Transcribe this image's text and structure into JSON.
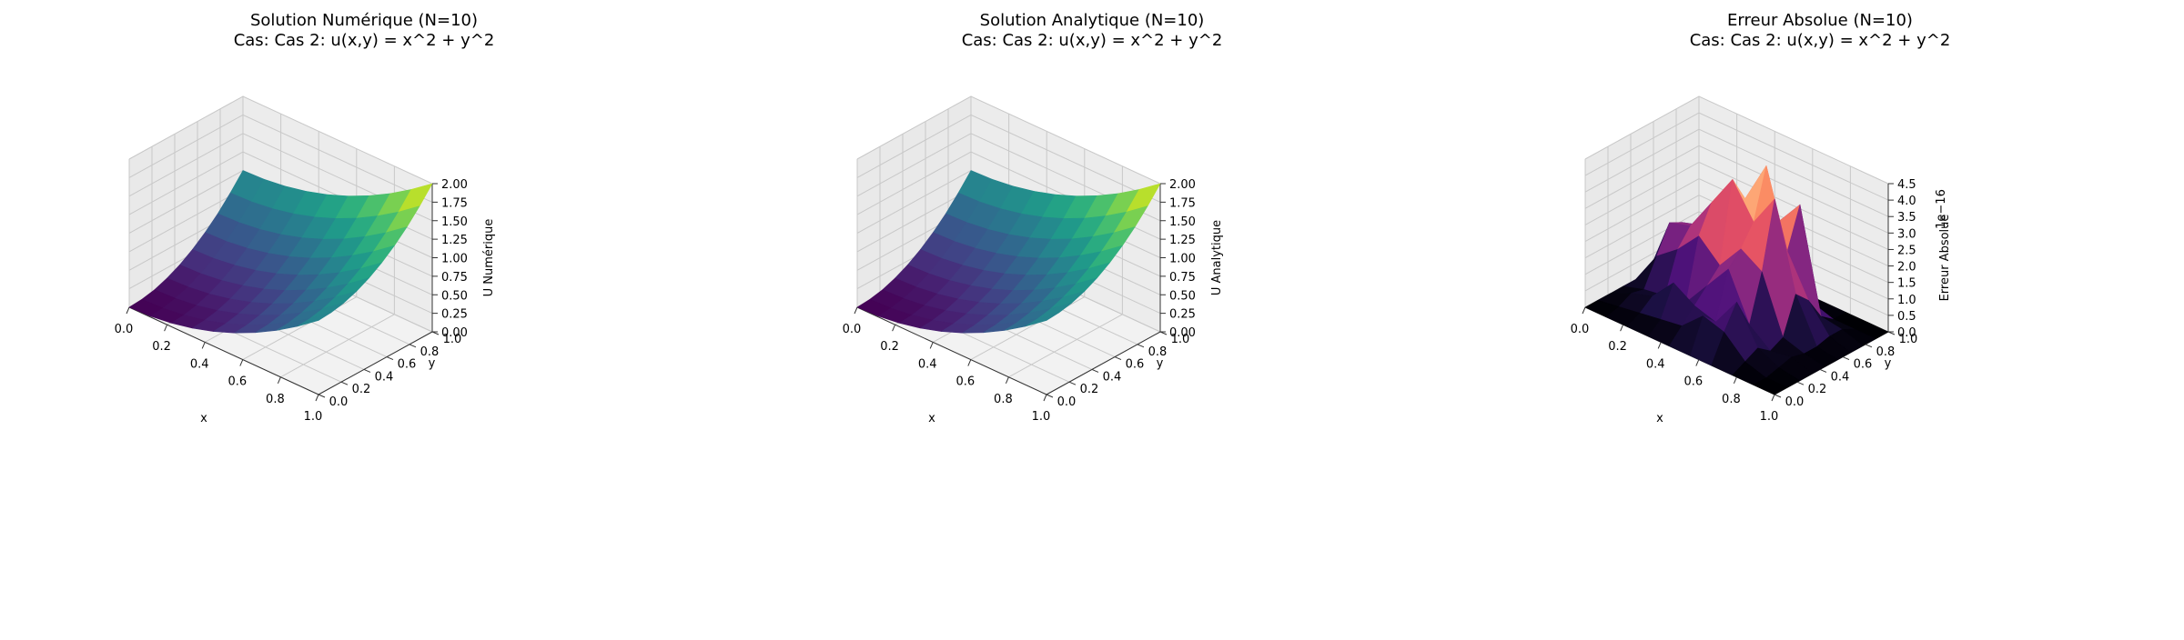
{
  "figure": {
    "panels": [
      {
        "title": "Solution Numérique (N=10)",
        "subtitle": "Cas: Cas 2: u(x,y) = x^2 + y^2",
        "xlabel": "x",
        "ylabel": "y",
        "zlabel": "U Numérique",
        "colormap": "viridis"
      },
      {
        "title": "Solution Analytique (N=10)",
        "subtitle": "Cas: Cas 2: u(x,y) = x^2 + y^2",
        "xlabel": "x",
        "ylabel": "y",
        "zlabel": "U Analytique",
        "colormap": "viridis"
      },
      {
        "title": "Erreur Absolue (N=10)",
        "subtitle": "Cas: Cas 2: u(x,y) = x^2 + y^2",
        "xlabel": "x",
        "ylabel": "y",
        "zlabel": "Erreur Absolue",
        "offset_text": "1e−16",
        "colormap": "magma"
      }
    ]
  },
  "chart_data": [
    {
      "type": "surface",
      "title": "Solution Numérique (N=10)",
      "subtitle": "Cas: Cas 2: u(x,y) = x^2 + y^2",
      "xlabel": "x",
      "ylabel": "y",
      "zlabel": "U Numérique",
      "grid_points": 10,
      "x": [
        0,
        0.111,
        0.222,
        0.333,
        0.444,
        0.556,
        0.667,
        0.778,
        0.889,
        1.0
      ],
      "y": [
        0,
        0.111,
        0.222,
        0.333,
        0.444,
        0.556,
        0.667,
        0.778,
        0.889,
        1.0
      ],
      "z_function": "x^2 + y^2",
      "xlim": [
        0,
        1
      ],
      "ylim": [
        0,
        1
      ],
      "zlim": [
        0,
        2
      ],
      "xticks": [
        "0.0",
        "0.2",
        "0.4",
        "0.6",
        "0.8",
        "1.0"
      ],
      "yticks": [
        "0.0",
        "0.2",
        "0.4",
        "0.6",
        "0.8",
        "1.0"
      ],
      "zticks": [
        "0.00",
        "0.25",
        "0.50",
        "0.75",
        "1.00",
        "1.25",
        "1.50",
        "1.75",
        "2.00"
      ],
      "grid": true
    },
    {
      "type": "surface",
      "title": "Solution Analytique (N=10)",
      "subtitle": "Cas: Cas 2: u(x,y) = x^2 + y^2",
      "xlabel": "x",
      "ylabel": "y",
      "zlabel": "U Analytique",
      "grid_points": 10,
      "x": [
        0,
        0.111,
        0.222,
        0.333,
        0.444,
        0.556,
        0.667,
        0.778,
        0.889,
        1.0
      ],
      "y": [
        0,
        0.111,
        0.222,
        0.333,
        0.444,
        0.556,
        0.667,
        0.778,
        0.889,
        1.0
      ],
      "z_function": "x^2 + y^2",
      "xlim": [
        0,
        1
      ],
      "ylim": [
        0,
        1
      ],
      "zlim": [
        0,
        2
      ],
      "xticks": [
        "0.0",
        "0.2",
        "0.4",
        "0.6",
        "0.8",
        "1.0"
      ],
      "yticks": [
        "0.0",
        "0.2",
        "0.4",
        "0.6",
        "0.8",
        "1.0"
      ],
      "zticks": [
        "0.00",
        "0.25",
        "0.50",
        "0.75",
        "1.00",
        "1.25",
        "1.50",
        "1.75",
        "2.00"
      ],
      "grid": true
    },
    {
      "type": "surface",
      "title": "Erreur Absolue (N=10)",
      "subtitle": "Cas: Cas 2: u(x,y) = x^2 + y^2",
      "xlabel": "x",
      "ylabel": "y",
      "zlabel": "Erreur Absolue",
      "z_scale": "1e-16",
      "grid_points": 10,
      "x": [
        0,
        0.111,
        0.222,
        0.333,
        0.444,
        0.556,
        0.667,
        0.778,
        0.889,
        1.0
      ],
      "y": [
        0,
        0.111,
        0.222,
        0.333,
        0.444,
        0.556,
        0.667,
        0.778,
        0.889,
        1.0
      ],
      "z_matrix_x_rows_y_cols": [
        [
          0,
          0,
          0,
          0,
          0,
          0,
          0,
          0,
          0,
          0
        ],
        [
          0,
          0.1,
          0.3,
          0.2,
          1.0,
          1.8,
          1.6,
          0.2,
          0.0,
          0
        ],
        [
          0,
          0.2,
          0.5,
          0.3,
          1.5,
          2.0,
          1.8,
          1.2,
          0.1,
          0
        ],
        [
          0,
          0.3,
          1.2,
          0.4,
          2.2,
          3.0,
          2.5,
          1.0,
          0.2,
          0
        ],
        [
          0,
          0.4,
          0.8,
          1.2,
          1.6,
          4.0,
          3.2,
          1.6,
          0.1,
          0
        ],
        [
          0,
          1.0,
          0.6,
          2.0,
          2.4,
          3.0,
          4.5,
          2.6,
          0.0,
          0
        ],
        [
          0,
          0.8,
          1.5,
          0.6,
          2.0,
          4.0,
          2.2,
          3.4,
          0.2,
          0
        ],
        [
          0,
          0.2,
          0.4,
          0.1,
          0.3,
          1.4,
          1.0,
          0.3,
          0.0,
          0
        ],
        [
          0,
          0,
          0.1,
          0.2,
          0.1,
          0.1,
          0.2,
          0.2,
          0.0,
          0
        ],
        [
          0,
          0,
          0,
          0,
          0,
          0,
          0,
          0,
          0,
          0
        ]
      ],
      "xlim": [
        0,
        1
      ],
      "ylim": [
        0,
        1
      ],
      "zlim": [
        0,
        4.5
      ],
      "xticks": [
        "0.0",
        "0.2",
        "0.4",
        "0.6",
        "0.8",
        "1.0"
      ],
      "yticks": [
        "0.0",
        "0.2",
        "0.4",
        "0.6",
        "0.8",
        "1.0"
      ],
      "zticks": [
        "0.0",
        "0.5",
        "1.0",
        "1.5",
        "2.0",
        "2.5",
        "3.0",
        "3.5",
        "4.0",
        "4.5"
      ],
      "grid": true
    }
  ]
}
